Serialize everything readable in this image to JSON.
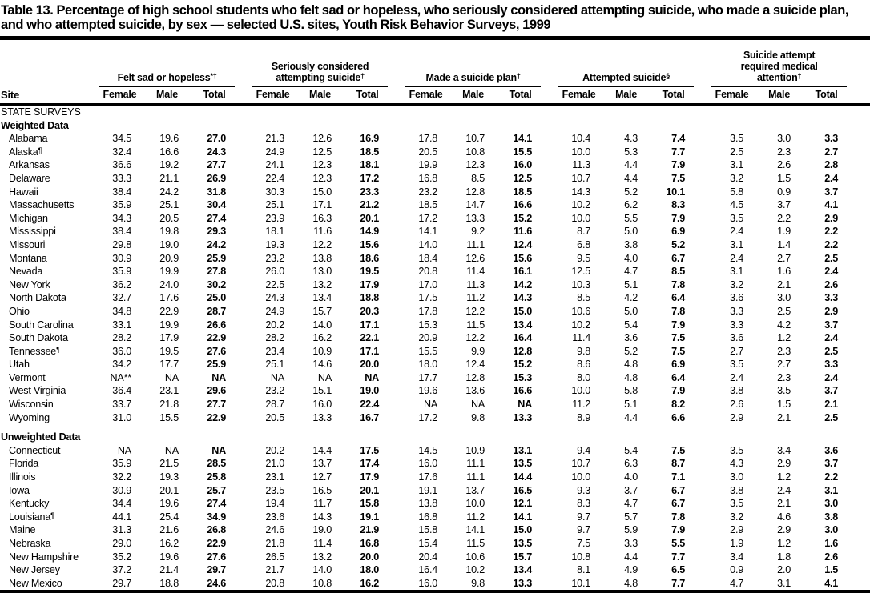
{
  "colors": {
    "text": "#000000",
    "background": "#ffffff"
  },
  "document": {
    "title": "Table 13. Percentage of high school students who felt sad or hopeless, who seriously considered attempting suicide, who made a suicide plan, and who attempted suicide, by sex — selected U.S. sites, Youth Risk Behavior Surveys, 1999"
  },
  "header": {
    "site_label": "Site",
    "sub_columns": [
      "Female",
      "Male",
      "Total"
    ],
    "groups": [
      {
        "label": "Felt sad or hopeless",
        "marker": "*†"
      },
      {
        "label": "Seriously considered attempting suicide",
        "marker": "†"
      },
      {
        "label": "Made a suicide plan",
        "marker": "†"
      },
      {
        "label": "Attempted suicide",
        "marker": "§"
      },
      {
        "label": "Suicide attempt required medical attention",
        "marker": "†"
      }
    ]
  },
  "rows": [
    {
      "type": "section",
      "style": "plain",
      "label": "STATE SURVEYS"
    },
    {
      "type": "section",
      "style": "bold",
      "label": "Weighted Data"
    },
    {
      "type": "data",
      "site": "Alabama",
      "marker": "",
      "values": [
        "34.5",
        "19.6",
        "27.0",
        "21.3",
        "12.6",
        "16.9",
        "17.8",
        "10.7",
        "14.1",
        "10.4",
        "4.3",
        "7.4",
        "3.5",
        "3.0",
        "3.3"
      ]
    },
    {
      "type": "data",
      "site": "Alaska",
      "marker": "¶",
      "values": [
        "32.4",
        "16.6",
        "24.3",
        "24.9",
        "12.5",
        "18.5",
        "20.5",
        "10.8",
        "15.5",
        "10.0",
        "5.3",
        "7.7",
        "2.5",
        "2.3",
        "2.7"
      ]
    },
    {
      "type": "data",
      "site": "Arkansas",
      "marker": "",
      "values": [
        "36.6",
        "19.2",
        "27.7",
        "24.1",
        "12.3",
        "18.1",
        "19.9",
        "12.3",
        "16.0",
        "11.3",
        "4.4",
        "7.9",
        "3.1",
        "2.6",
        "2.8"
      ]
    },
    {
      "type": "data",
      "site": "Delaware",
      "marker": "",
      "values": [
        "33.3",
        "21.1",
        "26.9",
        "22.4",
        "12.3",
        "17.2",
        "16.8",
        "8.5",
        "12.5",
        "10.7",
        "4.4",
        "7.5",
        "3.2",
        "1.5",
        "2.4"
      ]
    },
    {
      "type": "data",
      "site": "Hawaii",
      "marker": "",
      "values": [
        "38.4",
        "24.2",
        "31.8",
        "30.3",
        "15.0",
        "23.3",
        "23.2",
        "12.8",
        "18.5",
        "14.3",
        "5.2",
        "10.1",
        "5.8",
        "0.9",
        "3.7"
      ]
    },
    {
      "type": "data",
      "site": "Massachusetts",
      "marker": "",
      "values": [
        "35.9",
        "25.1",
        "30.4",
        "25.1",
        "17.1",
        "21.2",
        "18.5",
        "14.7",
        "16.6",
        "10.2",
        "6.2",
        "8.3",
        "4.5",
        "3.7",
        "4.1"
      ]
    },
    {
      "type": "data",
      "site": "Michigan",
      "marker": "",
      "values": [
        "34.3",
        "20.5",
        "27.4",
        "23.9",
        "16.3",
        "20.1",
        "17.2",
        "13.3",
        "15.2",
        "10.0",
        "5.5",
        "7.9",
        "3.5",
        "2.2",
        "2.9"
      ]
    },
    {
      "type": "data",
      "site": "Mississippi",
      "marker": "",
      "values": [
        "38.4",
        "19.8",
        "29.3",
        "18.1",
        "11.6",
        "14.9",
        "14.1",
        "9.2",
        "11.6",
        "8.7",
        "5.0",
        "6.9",
        "2.4",
        "1.9",
        "2.2"
      ]
    },
    {
      "type": "data",
      "site": "Missouri",
      "marker": "",
      "values": [
        "29.8",
        "19.0",
        "24.2",
        "19.3",
        "12.2",
        "15.6",
        "14.0",
        "11.1",
        "12.4",
        "6.8",
        "3.8",
        "5.2",
        "3.1",
        "1.4",
        "2.2"
      ]
    },
    {
      "type": "data",
      "site": "Montana",
      "marker": "",
      "values": [
        "30.9",
        "20.9",
        "25.9",
        "23.2",
        "13.8",
        "18.6",
        "18.4",
        "12.6",
        "15.6",
        "9.5",
        "4.0",
        "6.7",
        "2.4",
        "2.7",
        "2.5"
      ]
    },
    {
      "type": "data",
      "site": "Nevada",
      "marker": "",
      "values": [
        "35.9",
        "19.9",
        "27.8",
        "26.0",
        "13.0",
        "19.5",
        "20.8",
        "11.4",
        "16.1",
        "12.5",
        "4.7",
        "8.5",
        "3.1",
        "1.6",
        "2.4"
      ]
    },
    {
      "type": "data",
      "site": "New York",
      "marker": "",
      "values": [
        "36.2",
        "24.0",
        "30.2",
        "22.5",
        "13.2",
        "17.9",
        "17.0",
        "11.3",
        "14.2",
        "10.3",
        "5.1",
        "7.8",
        "3.2",
        "2.1",
        "2.6"
      ]
    },
    {
      "type": "data",
      "site": "North Dakota",
      "marker": "",
      "values": [
        "32.7",
        "17.6",
        "25.0",
        "24.3",
        "13.4",
        "18.8",
        "17.5",
        "11.2",
        "14.3",
        "8.5",
        "4.2",
        "6.4",
        "3.6",
        "3.0",
        "3.3"
      ]
    },
    {
      "type": "data",
      "site": "Ohio",
      "marker": "",
      "values": [
        "34.8",
        "22.9",
        "28.7",
        "24.9",
        "15.7",
        "20.3",
        "17.8",
        "12.2",
        "15.0",
        "10.6",
        "5.0",
        "7.8",
        "3.3",
        "2.5",
        "2.9"
      ]
    },
    {
      "type": "data",
      "site": "South Carolina",
      "marker": "",
      "values": [
        "33.1",
        "19.9",
        "26.6",
        "20.2",
        "14.0",
        "17.1",
        "15.3",
        "11.5",
        "13.4",
        "10.2",
        "5.4",
        "7.9",
        "3.3",
        "4.2",
        "3.7"
      ]
    },
    {
      "type": "data",
      "site": "South Dakota",
      "marker": "",
      "values": [
        "28.2",
        "17.9",
        "22.9",
        "28.2",
        "16.2",
        "22.1",
        "20.9",
        "12.2",
        "16.4",
        "11.4",
        "3.6",
        "7.5",
        "3.6",
        "1.2",
        "2.4"
      ]
    },
    {
      "type": "data",
      "site": "Tennessee",
      "marker": "¶",
      "values": [
        "36.0",
        "19.5",
        "27.6",
        "23.4",
        "10.9",
        "17.1",
        "15.5",
        "9.9",
        "12.8",
        "9.8",
        "5.2",
        "7.5",
        "2.7",
        "2.3",
        "2.5"
      ]
    },
    {
      "type": "data",
      "site": "Utah",
      "marker": "",
      "values": [
        "34.2",
        "17.7",
        "25.9",
        "25.1",
        "14.6",
        "20.0",
        "18.0",
        "12.4",
        "15.2",
        "8.6",
        "4.8",
        "6.9",
        "3.5",
        "2.7",
        "3.3"
      ]
    },
    {
      "type": "data",
      "site": "Vermont",
      "marker": "",
      "values": [
        "NA**",
        "NA",
        "NA",
        "NA",
        "NA",
        "NA",
        "17.7",
        "12.8",
        "15.3",
        "8.0",
        "4.8",
        "6.4",
        "2.4",
        "2.3",
        "2.4"
      ]
    },
    {
      "type": "data",
      "site": "West Virginia",
      "marker": "",
      "values": [
        "36.4",
        "23.1",
        "29.6",
        "23.2",
        "15.1",
        "19.0",
        "19.6",
        "13.6",
        "16.6",
        "10.0",
        "5.8",
        "7.9",
        "3.8",
        "3.5",
        "3.7"
      ]
    },
    {
      "type": "data",
      "site": "Wisconsin",
      "marker": "",
      "values": [
        "33.7",
        "21.8",
        "27.7",
        "28.7",
        "16.0",
        "22.4",
        "NA",
        "NA",
        "NA",
        "11.2",
        "5.1",
        "8.2",
        "2.6",
        "1.5",
        "2.1"
      ]
    },
    {
      "type": "data",
      "site": "Wyoming",
      "marker": "",
      "values": [
        "31.0",
        "15.5",
        "22.9",
        "20.5",
        "13.3",
        "16.7",
        "17.2",
        "9.8",
        "13.3",
        "8.9",
        "4.4",
        "6.6",
        "2.9",
        "2.1",
        "2.5"
      ]
    },
    {
      "type": "section",
      "style": "bold spaced",
      "label": "Unweighted Data"
    },
    {
      "type": "data",
      "site": "Connecticut",
      "marker": "",
      "values": [
        "NA",
        "NA",
        "NA",
        "20.2",
        "14.4",
        "17.5",
        "14.5",
        "10.9",
        "13.1",
        "9.4",
        "5.4",
        "7.5",
        "3.5",
        "3.4",
        "3.6"
      ]
    },
    {
      "type": "data",
      "site": "Florida",
      "marker": "",
      "values": [
        "35.9",
        "21.5",
        "28.5",
        "21.0",
        "13.7",
        "17.4",
        "16.0",
        "11.1",
        "13.5",
        "10.7",
        "6.3",
        "8.7",
        "4.3",
        "2.9",
        "3.7"
      ]
    },
    {
      "type": "data",
      "site": "Illinois",
      "marker": "",
      "values": [
        "32.2",
        "19.3",
        "25.8",
        "23.1",
        "12.7",
        "17.9",
        "17.6",
        "11.1",
        "14.4",
        "10.0",
        "4.0",
        "7.1",
        "3.0",
        "1.2",
        "2.2"
      ]
    },
    {
      "type": "data",
      "site": "Iowa",
      "marker": "",
      "values": [
        "30.9",
        "20.1",
        "25.7",
        "23.5",
        "16.5",
        "20.1",
        "19.1",
        "13.7",
        "16.5",
        "9.3",
        "3.7",
        "6.7",
        "3.8",
        "2.4",
        "3.1"
      ]
    },
    {
      "type": "data",
      "site": "Kentucky",
      "marker": "",
      "values": [
        "34.4",
        "19.6",
        "27.4",
        "19.4",
        "11.7",
        "15.8",
        "13.8",
        "10.0",
        "12.1",
        "8.3",
        "4.7",
        "6.7",
        "3.5",
        "2.1",
        "3.0"
      ]
    },
    {
      "type": "data",
      "site": "Louisiana",
      "marker": "¶",
      "values": [
        "44.1",
        "25.4",
        "34.9",
        "23.6",
        "14.3",
        "19.1",
        "16.8",
        "11.2",
        "14.1",
        "9.7",
        "5.7",
        "7.8",
        "3.2",
        "4.6",
        "3.8"
      ]
    },
    {
      "type": "data",
      "site": "Maine",
      "marker": "",
      "values": [
        "31.3",
        "21.6",
        "26.8",
        "24.6",
        "19.0",
        "21.9",
        "15.8",
        "14.1",
        "15.0",
        "9.7",
        "5.9",
        "7.9",
        "2.9",
        "2.9",
        "3.0"
      ]
    },
    {
      "type": "data",
      "site": "Nebraska",
      "marker": "",
      "values": [
        "29.0",
        "16.2",
        "22.9",
        "21.8",
        "11.4",
        "16.8",
        "15.4",
        "11.5",
        "13.5",
        "7.5",
        "3.3",
        "5.5",
        "1.9",
        "1.2",
        "1.6"
      ]
    },
    {
      "type": "data",
      "site": "New Hampshire",
      "marker": "",
      "values": [
        "35.2",
        "19.6",
        "27.6",
        "26.5",
        "13.2",
        "20.0",
        "20.4",
        "10.6",
        "15.7",
        "10.8",
        "4.4",
        "7.7",
        "3.4",
        "1.8",
        "2.6"
      ]
    },
    {
      "type": "data",
      "site": "New Jersey",
      "marker": "",
      "values": [
        "37.2",
        "21.4",
        "29.7",
        "21.7",
        "14.0",
        "18.0",
        "16.4",
        "10.2",
        "13.4",
        "8.1",
        "4.9",
        "6.5",
        "0.9",
        "2.0",
        "1.5"
      ]
    },
    {
      "type": "data",
      "site": "New Mexico",
      "marker": "",
      "values": [
        "29.7",
        "18.8",
        "24.6",
        "20.8",
        "10.8",
        "16.2",
        "16.0",
        "9.8",
        "13.3",
        "10.1",
        "4.8",
        "7.7",
        "4.7",
        "3.1",
        "4.1"
      ]
    }
  ]
}
